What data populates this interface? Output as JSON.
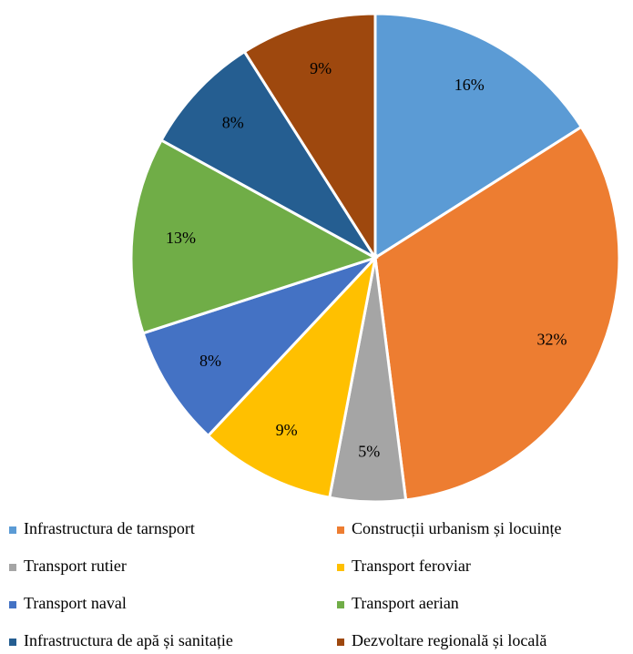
{
  "chart_data": {
    "type": "pie",
    "categories": [
      "Infrastructura de tarnsport",
      "Construcții urbanism și locuințe",
      "Transport rutier",
      "Transport feroviar",
      "Transport naval",
      "Transport aerian",
      "Infrastructura de apă și sanitație",
      "Dezvoltare regională și locală"
    ],
    "values": [
      16,
      32,
      5,
      9,
      8,
      13,
      8,
      9
    ],
    "value_labels": [
      "16%",
      "32%",
      "5%",
      "9%",
      "8%",
      "13%",
      "8%",
      "9%"
    ],
    "colors": [
      "#5b9bd5",
      "#ed7d31",
      "#a5a5a5",
      "#ffc000",
      "#4472c4",
      "#70ad47",
      "#255e91",
      "#9e480e"
    ],
    "legend": "bottom"
  }
}
